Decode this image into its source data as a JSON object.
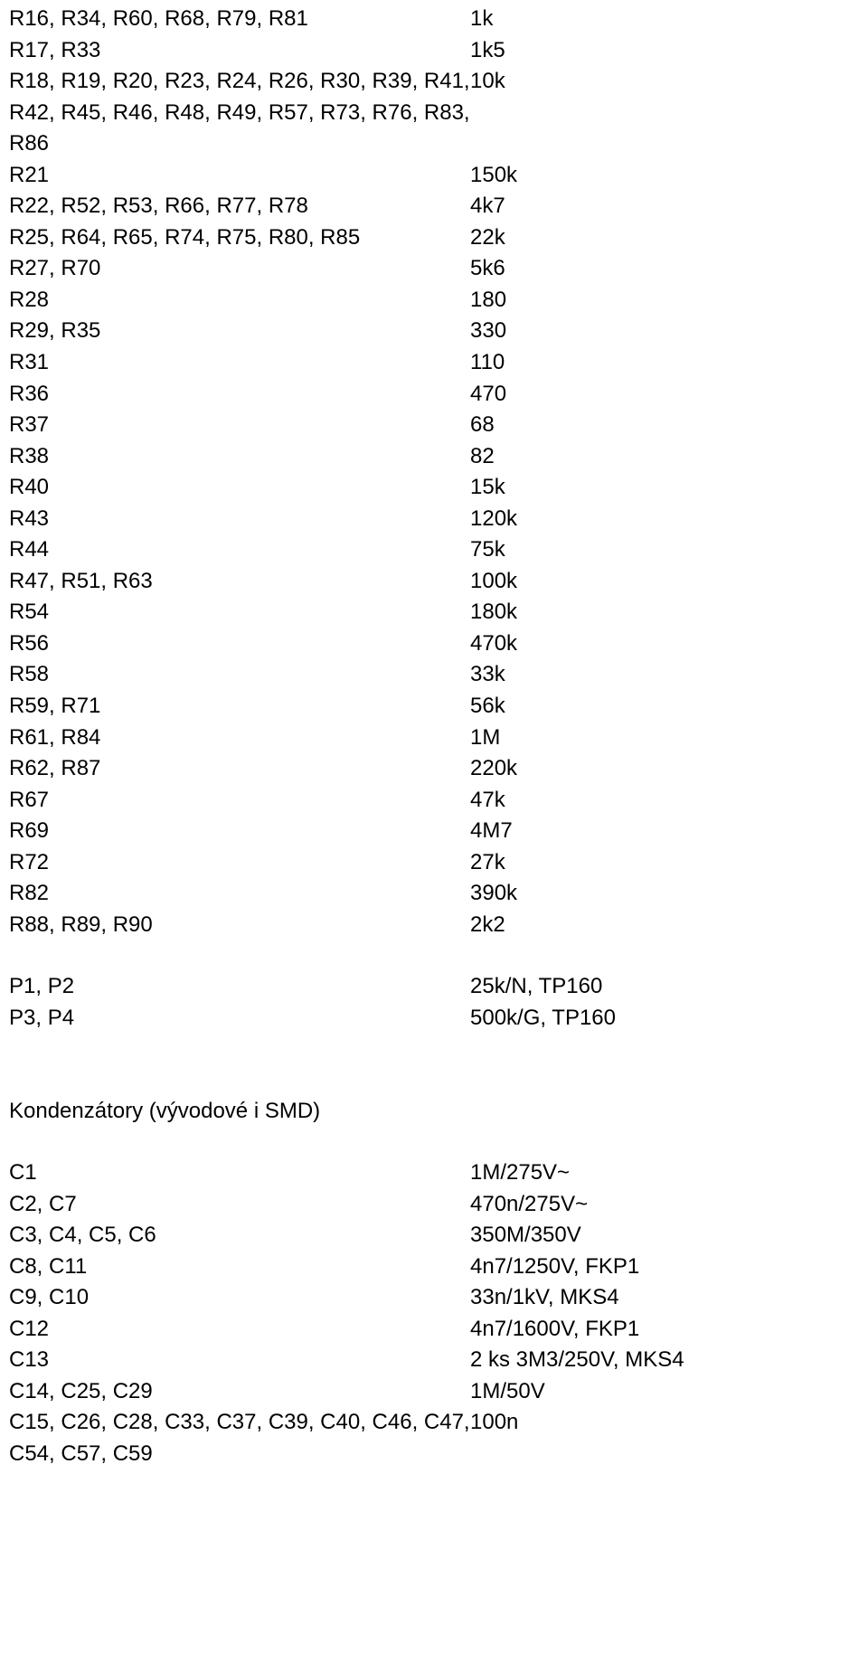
{
  "resistors": [
    {
      "ref": "R16, R34, R60, R68, R79, R81",
      "val": "1k"
    },
    {
      "ref": "R17, R33",
      "val": "1k5"
    },
    {
      "ref": "R18, R19, R20, R23, R24, R26, R30, R39, R41, R42, R45, R46, R48, R49, R57, R73, R76, R83, R86",
      "val": "10k"
    },
    {
      "ref": "R21",
      "val": "150k"
    },
    {
      "ref": "R22, R52, R53, R66, R77, R78",
      "val": "4k7"
    },
    {
      "ref": "R25, R64, R65, R74, R75, R80, R85",
      "val": "22k"
    },
    {
      "ref": "R27, R70",
      "val": "5k6"
    },
    {
      "ref": "R28",
      "val": "180"
    },
    {
      "ref": "R29, R35",
      "val": "330"
    },
    {
      "ref": "R31",
      "val": "110"
    },
    {
      "ref": "R36",
      "val": "470"
    },
    {
      "ref": "R37",
      "val": "68"
    },
    {
      "ref": "R38",
      "val": "82"
    },
    {
      "ref": "R40",
      "val": "15k"
    },
    {
      "ref": "R43",
      "val": "120k"
    },
    {
      "ref": "R44",
      "val": "75k"
    },
    {
      "ref": "R47, R51, R63",
      "val": "100k"
    },
    {
      "ref": "R54",
      "val": "180k"
    },
    {
      "ref": "R56",
      "val": "470k"
    },
    {
      "ref": "R58",
      "val": "33k"
    },
    {
      "ref": "R59, R71",
      "val": "56k"
    },
    {
      "ref": "R61, R84",
      "val": "1M"
    },
    {
      "ref": "R62, R87",
      "val": "220k"
    },
    {
      "ref": "R67",
      "val": "47k"
    },
    {
      "ref": "R69",
      "val": "4M7"
    },
    {
      "ref": "R72",
      "val": "27k"
    },
    {
      "ref": "R82",
      "val": "390k"
    },
    {
      "ref": "R88, R89, R90",
      "val": "2k2"
    }
  ],
  "pots": [
    {
      "ref": "P1, P2",
      "val": "25k/N, TP160"
    },
    {
      "ref": "P3, P4",
      "val": "500k/G, TP160"
    }
  ],
  "heading": "Kondenzátory (vývodové i SMD)",
  "caps": [
    {
      "ref": "C1",
      "val": "1M/275V~"
    },
    {
      "ref": "C2, C7",
      "val": "470n/275V~"
    },
    {
      "ref": "C3, C4, C5, C6",
      "val": "350M/350V"
    },
    {
      "ref": "C8, C11",
      "val": "4n7/1250V, FKP1"
    },
    {
      "ref": "C9, C10",
      "val": "33n/1kV, MKS4"
    },
    {
      "ref": "C12",
      "val": "4n7/1600V, FKP1"
    },
    {
      "ref": "C13",
      "val": "2 ks 3M3/250V, MKS4"
    },
    {
      "ref": "C14, C25, C29",
      "val": "1M/50V"
    },
    {
      "ref": "C15, C26, C28, C33, C37, C39, C40, C46, C47, C54, C57, C59",
      "val": "100n"
    }
  ]
}
